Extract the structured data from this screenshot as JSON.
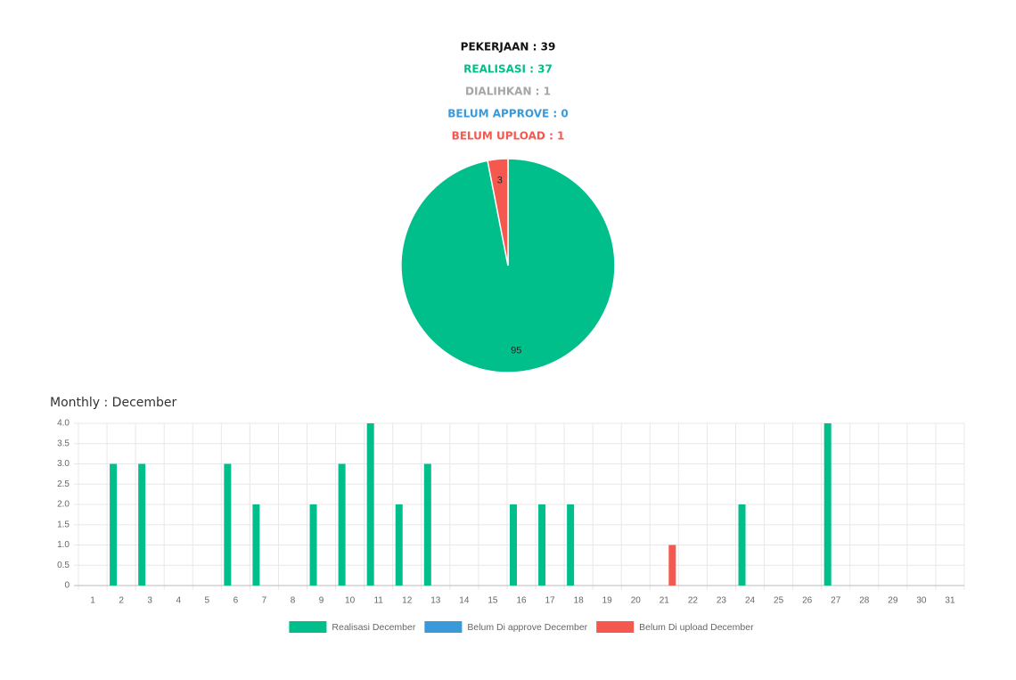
{
  "header": {
    "lines": [
      "PEKERJAAN : 39",
      "REALISASI : 37",
      "DIALIHKAN : 1",
      "BELUM APPROVE : 0",
      "BELUM UPLOAD : 1"
    ]
  },
  "chart_data": [
    {
      "type": "pie",
      "values": [
        95,
        3
      ],
      "colors": [
        "#00bf8a",
        "#f5584e"
      ]
    },
    {
      "type": "bar",
      "title": "Monthly : December",
      "categories": [
        "1",
        "2",
        "3",
        "4",
        "5",
        "6",
        "7",
        "8",
        "9",
        "10",
        "11",
        "12",
        "13",
        "14",
        "15",
        "16",
        "17",
        "18",
        "19",
        "20",
        "21",
        "22",
        "23",
        "24",
        "25",
        "26",
        "27",
        "28",
        "29",
        "30",
        "31"
      ],
      "series": [
        {
          "name": "Realisasi December",
          "color": "#00bf8a",
          "values": [
            0,
            3,
            3,
            0,
            0,
            3,
            2,
            0,
            2,
            3,
            4,
            2,
            3,
            0,
            0,
            2,
            2,
            2,
            0,
            0,
            0,
            0,
            0,
            2,
            0,
            0,
            4,
            0,
            0,
            0,
            0
          ]
        },
        {
          "name": "Belum Di approve December",
          "color": "#3a9ad9",
          "values": [
            0,
            0,
            0,
            0,
            0,
            0,
            0,
            0,
            0,
            0,
            0,
            0,
            0,
            0,
            0,
            0,
            0,
            0,
            0,
            0,
            0,
            0,
            0,
            0,
            0,
            0,
            0,
            0,
            0,
            0,
            0
          ]
        },
        {
          "name": "Belum Di upload December",
          "color": "#f5584e",
          "values": [
            0,
            0,
            0,
            0,
            0,
            0,
            0,
            0,
            0,
            0,
            0,
            0,
            0,
            0,
            0,
            0,
            0,
            0,
            0,
            0,
            1,
            0,
            0,
            0,
            0,
            0,
            0,
            0,
            0,
            0,
            0
          ]
        }
      ],
      "ylim": [
        0,
        4
      ],
      "yticks": [
        0,
        0.5,
        {
          "value": 1,
          "label": "1.0"
        },
        1.5,
        {
          "value": 2,
          "label": "2.0"
        },
        2.5,
        {
          "value": 3,
          "label": "3.0"
        },
        3.5,
        {
          "value": 4,
          "label": "4.0"
        }
      ],
      "grid": true,
      "legend": "bottom"
    }
  ]
}
